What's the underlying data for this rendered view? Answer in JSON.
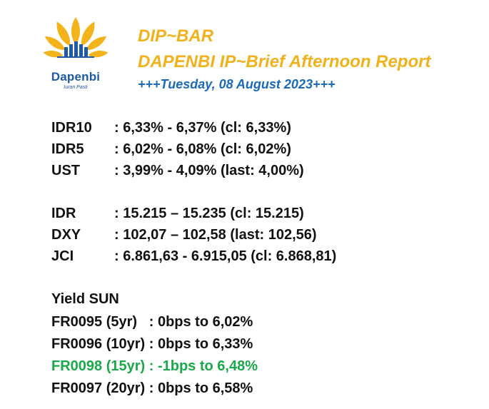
{
  "header": {
    "logo_icon": "dapenbi-sun-logo-icon",
    "brand_name": "Dapenbi",
    "brand_tagline": "Iuran Pasti",
    "title_line1": "DIP~BAR",
    "title_line2": "DAPENBI IP~Brief Afternoon Report",
    "date_line": "+++Tuesday, 08 August 2023+++"
  },
  "colors": {
    "title": "#f0b21c",
    "date": "#1b6ab8",
    "text": "#111111",
    "highlight": "#1aa849",
    "logo_blue": "#1f5aa6"
  },
  "bonds_group": [
    {
      "key": "IDR10",
      "value": ": 6,33% - 6,37% (cl: 6,33%)"
    },
    {
      "key": "IDR5",
      "value": ": 6,02% - 6,08% (cl: 6,02%)"
    },
    {
      "key": "UST",
      "value": ": 3,99% - 4,09% (last: 4,00%)"
    }
  ],
  "markets_group": [
    {
      "key": "IDR",
      "value": ": 15.215 – 15.235 (cl: 15.215)"
    },
    {
      "key": "DXY",
      "value": ": 102,07 – 102,58 (last: 102,56)"
    },
    {
      "key": "JCI",
      "value": ": 6.861,63 - 6.915,05 (cl: 6.868,81)"
    }
  ],
  "yield_sun": {
    "title": "Yield SUN",
    "items": [
      {
        "text": "FR0095 (5yr)   : 0bps to 6,02%",
        "highlight": false
      },
      {
        "text": "FR0096 (10yr) : 0bps to 6,33%",
        "highlight": false
      },
      {
        "text": "FR0098 (15yr) : -1bps to 6,48%",
        "highlight": true
      },
      {
        "text": "FR0097 (20yr) : 0bps to 6,58%",
        "highlight": false
      }
    ]
  }
}
